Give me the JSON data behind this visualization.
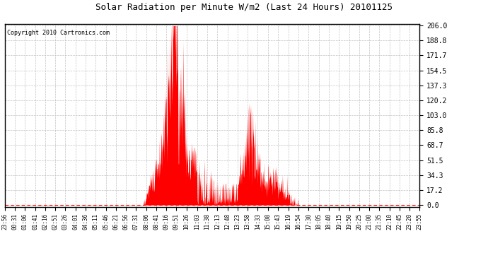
{
  "title": "Solar Radiation per Minute W/m2 (Last 24 Hours) 20101125",
  "copyright": "Copyright 2010 Cartronics.com",
  "fill_color": "#FF0000",
  "line_color": "#FF0000",
  "background_color": "#FFFFFF",
  "grid_color": "#BBBBBB",
  "dashed_line_color": "#FF0000",
  "yticks": [
    0.0,
    17.2,
    34.3,
    51.5,
    68.7,
    85.8,
    103.0,
    120.2,
    137.3,
    154.5,
    171.7,
    188.8,
    206.0
  ],
  "ymax": 206.0,
  "xtick_labels": [
    "23:56",
    "00:31",
    "01:06",
    "01:41",
    "02:16",
    "02:51",
    "03:26",
    "04:01",
    "04:36",
    "05:11",
    "05:46",
    "06:21",
    "06:56",
    "07:31",
    "08:06",
    "08:41",
    "09:16",
    "09:51",
    "10:26",
    "11:03",
    "11:38",
    "12:13",
    "12:48",
    "13:23",
    "13:58",
    "14:33",
    "15:08",
    "15:43",
    "16:19",
    "16:54",
    "17:30",
    "18:05",
    "18:40",
    "19:15",
    "19:50",
    "20:25",
    "21:00",
    "21:35",
    "22:10",
    "22:45",
    "23:20",
    "23:55"
  ],
  "num_points": 1440
}
